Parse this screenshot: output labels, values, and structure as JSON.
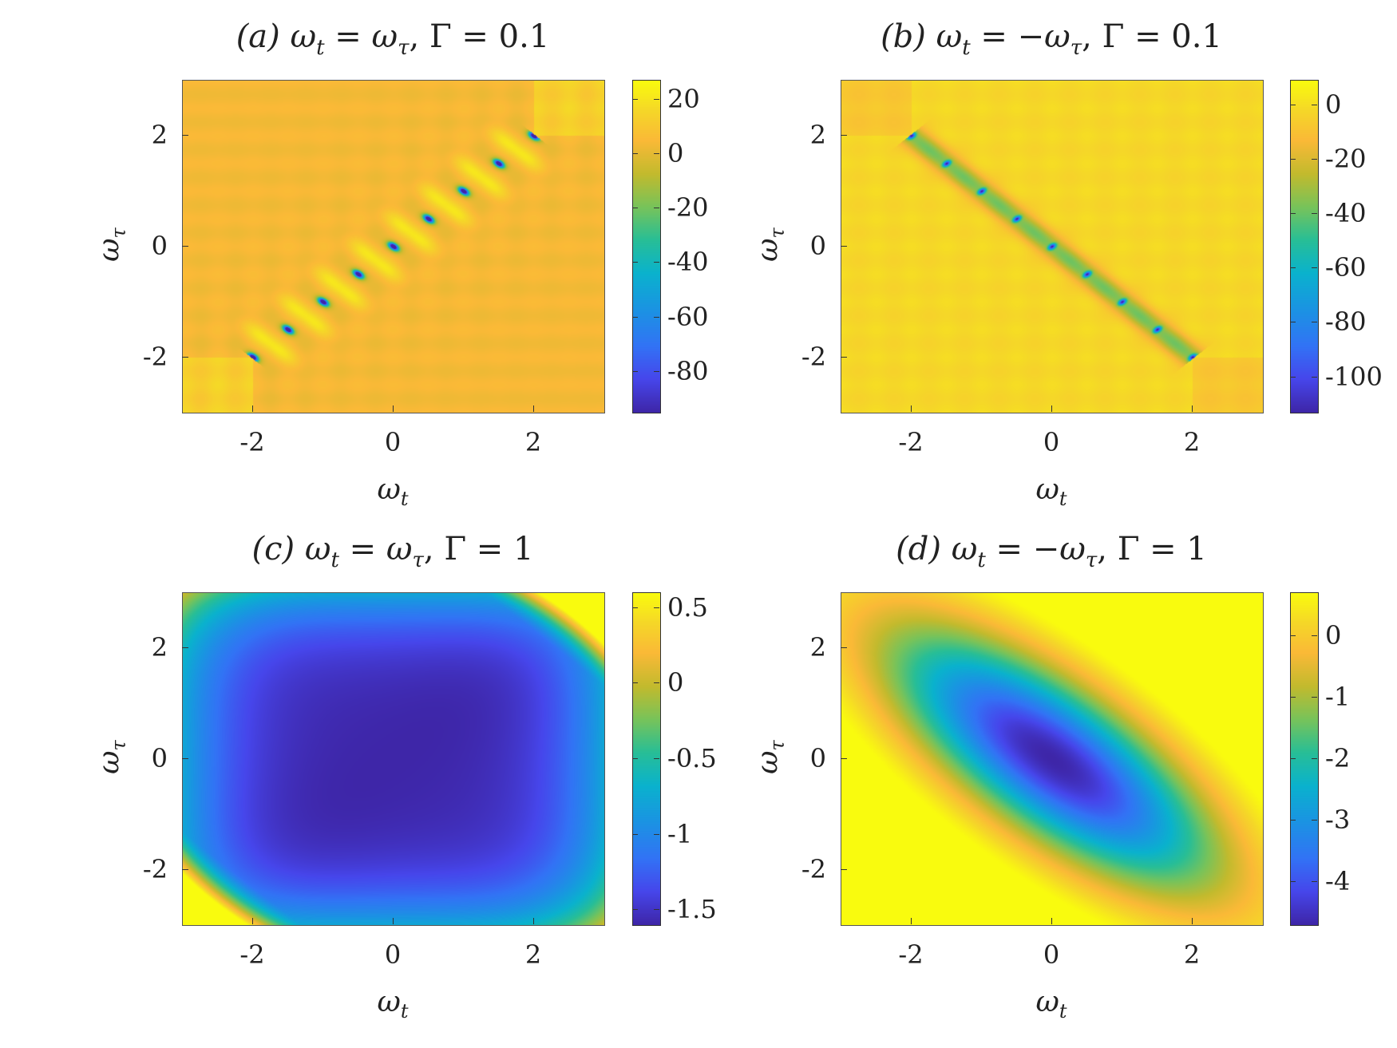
{
  "chart_data": [
    {
      "type": "heatmap",
      "title": "(a) ωt = ωτ, Γ = 0.1",
      "title_parts": {
        "letter": "(a)",
        "lhs": "ω",
        "lhs_sub": "t",
        "eq": " = ",
        "rhs": "ω",
        "rhs_sub": "τ",
        "gamma": ", Γ = 0.1"
      },
      "xlabel": "ωt",
      "ylabel": "ωτ",
      "xlim": [
        -3,
        3
      ],
      "ylim": [
        -3,
        3
      ],
      "xticks": [
        -2,
        0,
        2
      ],
      "yticks": [
        -2,
        0,
        2
      ],
      "xticklabels": [
        "-2",
        "0",
        "2"
      ],
      "yticklabels": [
        "-2",
        "0",
        "2"
      ],
      "colormap": "parula",
      "clim": [
        -95,
        27
      ],
      "cticks": [
        20,
        0,
        -20,
        -40,
        -60,
        -80
      ],
      "cticklabels": [
        "20",
        "0",
        "-20",
        "-40",
        "-60",
        "-80"
      ],
      "pattern": "narrow resonances along diagonal ωτ = ωt, Γ = 0.1"
    },
    {
      "type": "heatmap",
      "title": "(b) ωt = −ωτ, Γ = 0.1",
      "title_parts": {
        "letter": "(b)",
        "lhs": "ω",
        "lhs_sub": "t",
        "eq": " = −",
        "rhs": "ω",
        "rhs_sub": "τ",
        "gamma": ", Γ = 0.1"
      },
      "xlabel": "ωt",
      "ylabel": "ωτ",
      "xlim": [
        -3,
        3
      ],
      "ylim": [
        -3,
        3
      ],
      "xticks": [
        -2,
        0,
        2
      ],
      "yticks": [
        -2,
        0,
        2
      ],
      "xticklabels": [
        "-2",
        "0",
        "2"
      ],
      "yticklabels": [
        "-2",
        "0",
        "2"
      ],
      "colormap": "parula",
      "clim": [
        -113,
        9
      ],
      "cticks": [
        0,
        -20,
        -40,
        -60,
        -80,
        -100
      ],
      "cticklabels": [
        "0",
        "-20",
        "-40",
        "-60",
        "-80",
        "-100"
      ],
      "pattern": "narrow resonances along anti-diagonal ωτ = −ωt, Γ = 0.1"
    },
    {
      "type": "heatmap",
      "title": "(c) ωt = ωτ, Γ = 1",
      "title_parts": {
        "letter": "(c)",
        "lhs": "ω",
        "lhs_sub": "t",
        "eq": " = ",
        "rhs": "ω",
        "rhs_sub": "τ",
        "gamma": ", Γ = 1"
      },
      "xlabel": "ωt",
      "ylabel": "ωτ",
      "xlim": [
        -3,
        3
      ],
      "ylim": [
        -3,
        3
      ],
      "xticks": [
        -2,
        0,
        2
      ],
      "yticks": [
        -2,
        0,
        2
      ],
      "xticklabels": [
        "-2",
        "0",
        "2"
      ],
      "yticklabels": [
        "-2",
        "0",
        "2"
      ],
      "colormap": "parula",
      "clim": [
        -1.6,
        0.6
      ],
      "cticks": [
        0.5,
        0,
        -0.5,
        -1,
        -1.5
      ],
      "cticklabels": [
        "0.5",
        "0",
        "-0.5",
        "-1",
        "-1.5"
      ],
      "pattern": "broad low plateau, rising at (−3,−3) and (3,3) corners"
    },
    {
      "type": "heatmap",
      "title": "(d) ωt = −ωτ, Γ = 1",
      "title_parts": {
        "letter": "(d)",
        "lhs": "ω",
        "lhs_sub": "t",
        "eq": " = −",
        "rhs": "ω",
        "rhs_sub": "τ",
        "gamma": ", Γ = 1"
      },
      "xlabel": "ωt",
      "ylabel": "ωτ",
      "xlim": [
        -3,
        3
      ],
      "ylim": [
        -3,
        3
      ],
      "xticks": [
        -2,
        0,
        2
      ],
      "yticks": [
        -2,
        0,
        2
      ],
      "xticklabels": [
        "-2",
        "0",
        "2"
      ],
      "yticklabels": [
        "-2",
        "0",
        "2"
      ],
      "colormap": "parula",
      "clim": [
        -4.7,
        0.7
      ],
      "cticks": [
        0,
        -1,
        -2,
        -3,
        -4
      ],
      "cticklabels": [
        "0",
        "-1",
        "-2",
        "-3",
        "-4"
      ],
      "pattern": "elliptical minimum at origin elongated along ωτ = −ωt"
    }
  ]
}
